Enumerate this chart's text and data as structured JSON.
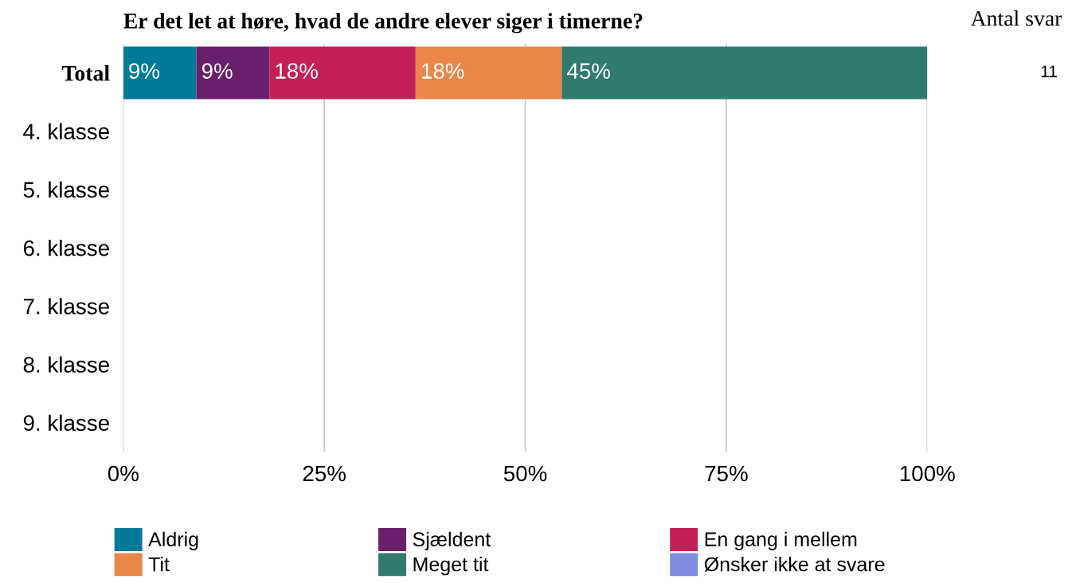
{
  "chart_data": {
    "type": "bar",
    "orientation": "horizontal",
    "stacked": true,
    "title": "Er det let at høre, hvad de andre elever siger i timerne?",
    "categories": [
      "Total",
      "4. klasse",
      "5. klasse",
      "6. klasse",
      "7. klasse",
      "8. klasse",
      "9. klasse"
    ],
    "series": [
      {
        "name": "Aldrig",
        "color": "#007a99",
        "values": [
          9.09,
          null,
          null,
          null,
          null,
          null,
          null
        ],
        "value_labels": [
          "9%",
          null,
          null,
          null,
          null,
          null,
          null
        ]
      },
      {
        "name": "Sjældent",
        "color": "#6a1f6a",
        "values": [
          9.09,
          null,
          null,
          null,
          null,
          null,
          null
        ],
        "value_labels": [
          "9%",
          null,
          null,
          null,
          null,
          null,
          null
        ]
      },
      {
        "name": "En gang i mellem",
        "color": "#c41f57",
        "values": [
          18.18,
          null,
          null,
          null,
          null,
          null,
          null
        ],
        "value_labels": [
          "18%",
          null,
          null,
          null,
          null,
          null,
          null
        ]
      },
      {
        "name": "Tit",
        "color": "#eb8649",
        "values": [
          18.18,
          null,
          null,
          null,
          null,
          null,
          null
        ],
        "value_labels": [
          "18%",
          null,
          null,
          null,
          null,
          null,
          null
        ]
      },
      {
        "name": "Meget tit",
        "color": "#317a6e",
        "values": [
          45.45,
          null,
          null,
          null,
          null,
          null,
          null
        ],
        "value_labels": [
          "45%",
          null,
          null,
          null,
          null,
          null,
          null
        ]
      },
      {
        "name": "Ønsker ikke at svare",
        "color": "#7f8ce0",
        "values": [
          0,
          null,
          null,
          null,
          null,
          null,
          null
        ],
        "value_labels": [
          null,
          null,
          null,
          null,
          null,
          null,
          null
        ]
      }
    ],
    "xlim": [
      0,
      100
    ],
    "xticks": [
      {
        "value": 0,
        "label": "0%"
      },
      {
        "value": 25,
        "label": "25%"
      },
      {
        "value": 50,
        "label": "50%"
      },
      {
        "value": 75,
        "label": "75%"
      },
      {
        "value": 100,
        "label": "100%"
      }
    ],
    "grid": "x",
    "legend": "bottom",
    "annotations": [
      "Antal svar",
      "11"
    ]
  }
}
